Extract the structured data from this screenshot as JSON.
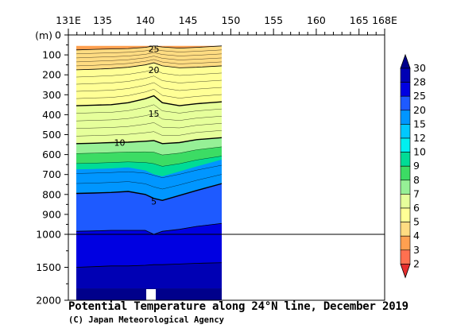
{
  "chart_data": {
    "type": "heatmap",
    "title": "Potential Temperature along 24°N line, December 2019",
    "credit": "(C) Japan Meteorological Agency",
    "x_tick_labels": [
      "131E",
      "135",
      "140",
      "145",
      "150",
      "155",
      "160",
      "165",
      "168E"
    ],
    "x_tick_values": [
      131,
      135,
      140,
      145,
      150,
      155,
      160,
      165,
      168
    ],
    "xlim": [
      131,
      168
    ],
    "y_unit_label": "(m)",
    "y_tick_labels_upper": [
      "0",
      "100",
      "200",
      "300",
      "400",
      "500",
      "600",
      "700",
      "800",
      "900",
      "1000"
    ],
    "y_tick_values_upper": [
      0,
      100,
      200,
      300,
      400,
      500,
      600,
      700,
      800,
      900,
      1000
    ],
    "y_tick_labels_lower": [
      "1500",
      "2000"
    ],
    "y_tick_values_lower": [
      1500,
      2000
    ],
    "ylim": [
      0,
      2000
    ],
    "y_scale_break_depth": 1000,
    "data_longitude_range": [
      132,
      149
    ],
    "colorbar_levels": [
      "2",
      "3",
      "4",
      "5",
      "6",
      "7",
      "8",
      "9",
      "10",
      "12",
      "15",
      "20",
      "25",
      "28",
      "30"
    ],
    "colorbar_colors": [
      "#00008b",
      "#0000b4",
      "#0000e1",
      "#1e5aff",
      "#0096ff",
      "#00c8ff",
      "#00f0f0",
      "#00dc96",
      "#3cdc64",
      "#96f096",
      "#e6ff9b",
      "#ffff96",
      "#ffdc82",
      "#ffa050",
      "#ff7050",
      "#e62d2d"
    ],
    "contour_labels": [
      {
        "value": "25",
        "lon": 141,
        "depth": 70
      },
      {
        "value": "20",
        "lon": 141,
        "depth": 175
      },
      {
        "value": "15",
        "lon": 141,
        "depth": 395
      },
      {
        "value": "10",
        "lon": 137,
        "depth": 540
      },
      {
        "value": "5",
        "lon": 141,
        "depth": 835
      }
    ],
    "isotherm_depths": {
      "note_units": "depth in m at each longitude",
      "lon": [
        132,
        134,
        136,
        138,
        140,
        141,
        142,
        144,
        146,
        149
      ],
      "t25": [
        75,
        72,
        70,
        68,
        62,
        55,
        60,
        66,
        62,
        55
      ],
      "t20": [
        175,
        172,
        168,
        162,
        150,
        140,
        155,
        165,
        162,
        155
      ],
      "t15": [
        355,
        352,
        350,
        340,
        320,
        305,
        340,
        355,
        345,
        335
      ],
      "t10": [
        545,
        543,
        540,
        538,
        533,
        530,
        545,
        540,
        525,
        515
      ],
      "t5": [
        795,
        793,
        790,
        785,
        800,
        820,
        830,
        805,
        780,
        745
      ],
      "t4": [
        985,
        983,
        980,
        980,
        980,
        1000,
        985,
        975,
        960,
        945
      ],
      "t3": [
        1500,
        1490,
        1480,
        1480,
        1470,
        1460,
        1460,
        1450,
        1440,
        1430
      ]
    }
  }
}
